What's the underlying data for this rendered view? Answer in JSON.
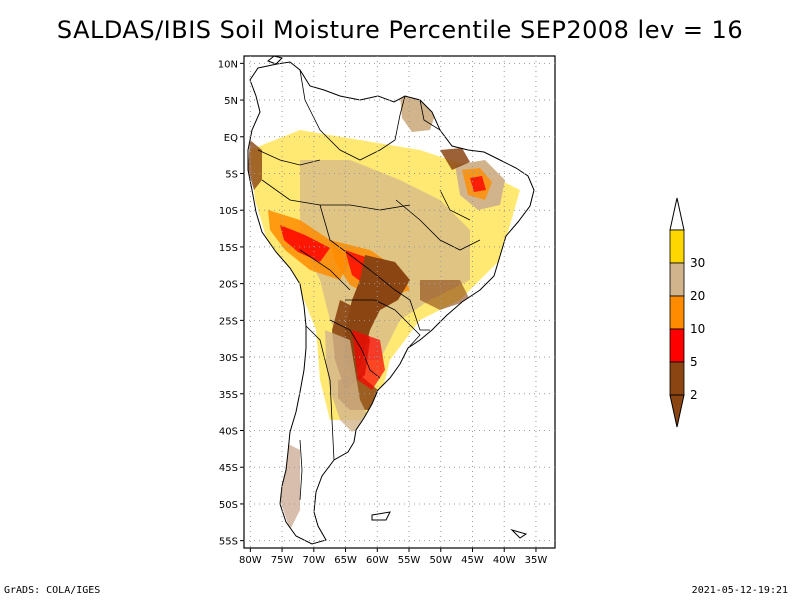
{
  "title": "SALDAS/IBIS Soil Moisture Percentile SEP2008 lev = 16",
  "footer": {
    "left": "GrADS: COLA/IGES",
    "right": "2021-05-12-19:21"
  },
  "map": {
    "lon_range": [
      -81,
      -32
    ],
    "lat_range": [
      -56,
      11
    ],
    "lat_ticks": [
      {
        "value": 10,
        "label": "10N"
      },
      {
        "value": 5,
        "label": "5N"
      },
      {
        "value": 0,
        "label": "EQ"
      },
      {
        "value": -5,
        "label": "5S"
      },
      {
        "value": -10,
        "label": "10S"
      },
      {
        "value": -15,
        "label": "15S"
      },
      {
        "value": -20,
        "label": "20S"
      },
      {
        "value": -25,
        "label": "25S"
      },
      {
        "value": -30,
        "label": "30S"
      },
      {
        "value": -35,
        "label": "35S"
      },
      {
        "value": -40,
        "label": "40S"
      },
      {
        "value": -45,
        "label": "45S"
      },
      {
        "value": -50,
        "label": "50S"
      },
      {
        "value": -55,
        "label": "55S"
      }
    ],
    "lon_ticks": [
      {
        "value": -80,
        "label": "80W"
      },
      {
        "value": -75,
        "label": "75W"
      },
      {
        "value": -70,
        "label": "70W"
      },
      {
        "value": -65,
        "label": "65W"
      },
      {
        "value": -60,
        "label": "60W"
      },
      {
        "value": -55,
        "label": "55W"
      },
      {
        "value": -50,
        "label": "50W"
      },
      {
        "value": -45,
        "label": "45W"
      },
      {
        "value": -40,
        "label": "40W"
      },
      {
        "value": -35,
        "label": "35W"
      }
    ]
  },
  "colorbar": {
    "levels": [
      "2",
      "5",
      "10",
      "20",
      "30"
    ],
    "colors": [
      "#8b4513",
      "#ff0000",
      "#ff8c00",
      "#d2b48c",
      "#ffd700"
    ],
    "top_arrow_color": "#ffffff",
    "bottom_arrow_color": "#8b4513"
  }
}
